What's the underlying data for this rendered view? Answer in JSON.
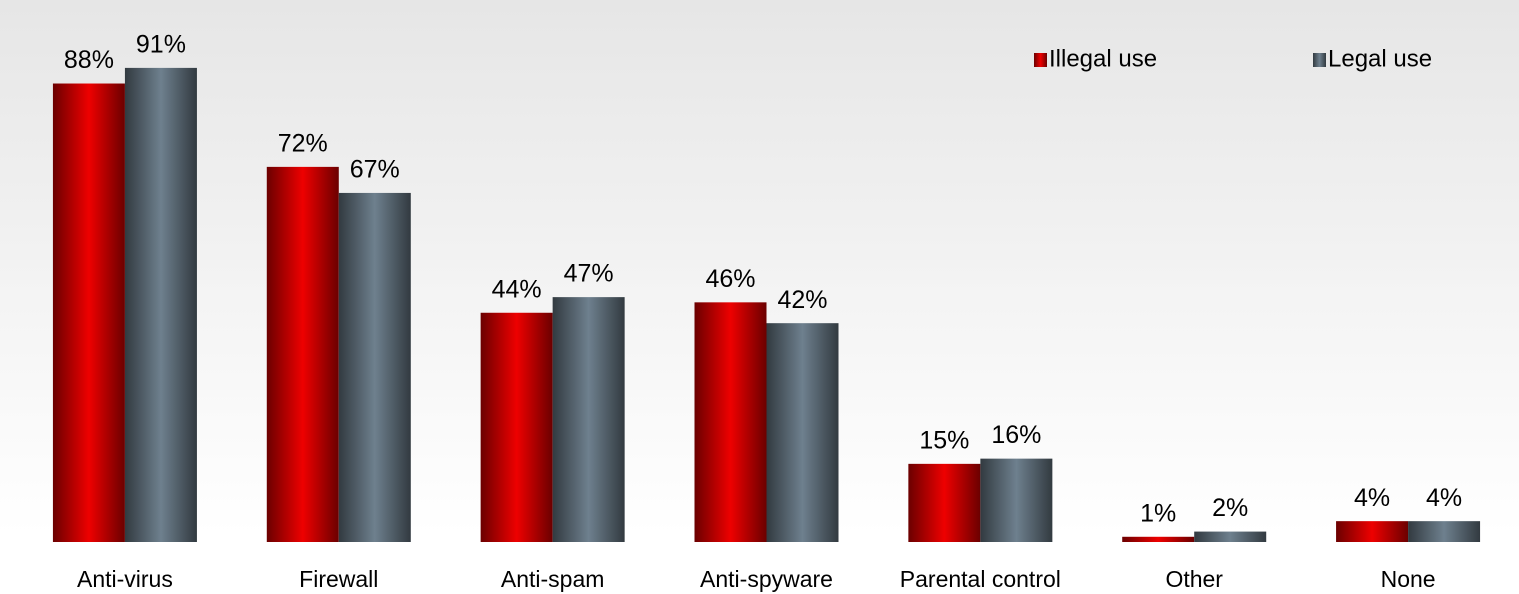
{
  "chart_data": {
    "type": "bar",
    "categories": [
      "Anti-virus",
      "Firewall",
      "Anti-spam",
      "Anti-spyware",
      "Parental control",
      "Other",
      "None"
    ],
    "series": [
      {
        "name": "Illegal use",
        "color": "#ee0000",
        "values": [
          88,
          72,
          44,
          46,
          15,
          1,
          4
        ],
        "value_labels": [
          "88%",
          "72%",
          "44%",
          "46%",
          "15%",
          "1%",
          "4%"
        ]
      },
      {
        "name": "Legal use",
        "color": "#6e808e",
        "values": [
          91,
          67,
          47,
          42,
          16,
          2,
          4
        ],
        "value_labels": [
          "91%",
          "67%",
          "47%",
          "42%",
          "16%",
          "2%",
          "4%"
        ]
      }
    ],
    "ylim": [
      0,
      100
    ],
    "grid": false,
    "legend": "top-right"
  }
}
